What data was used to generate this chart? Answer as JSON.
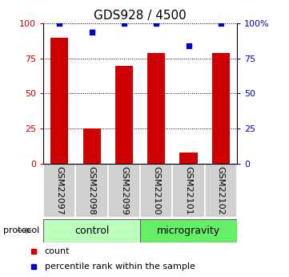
{
  "title": "GDS928 / 4500",
  "samples": [
    "GSM22097",
    "GSM22098",
    "GSM22099",
    "GSM22100",
    "GSM22101",
    "GSM22102"
  ],
  "bar_values": [
    90,
    25,
    70,
    79,
    8,
    79
  ],
  "scatter_values": [
    100,
    94,
    100,
    100,
    84,
    100
  ],
  "bar_color": "#cc0000",
  "scatter_color": "#0000cc",
  "ylim": [
    0,
    100
  ],
  "yticks": [
    0,
    25,
    50,
    75,
    100
  ],
  "groups": [
    {
      "label": "control",
      "start": 0,
      "end": 3,
      "color": "#bbffbb"
    },
    {
      "label": "microgravity",
      "start": 3,
      "end": 6,
      "color": "#66ee66"
    }
  ],
  "protocol_label": "protocol",
  "legend": [
    {
      "label": "count",
      "color": "#cc0000"
    },
    {
      "label": "percentile rank within the sample",
      "color": "#0000cc"
    }
  ],
  "title_fontsize": 11,
  "tick_fontsize": 8,
  "label_fontsize": 8,
  "group_fontsize": 9,
  "bar_width": 0.55,
  "figsize": [
    3.61,
    3.45
  ],
  "dpi": 100
}
